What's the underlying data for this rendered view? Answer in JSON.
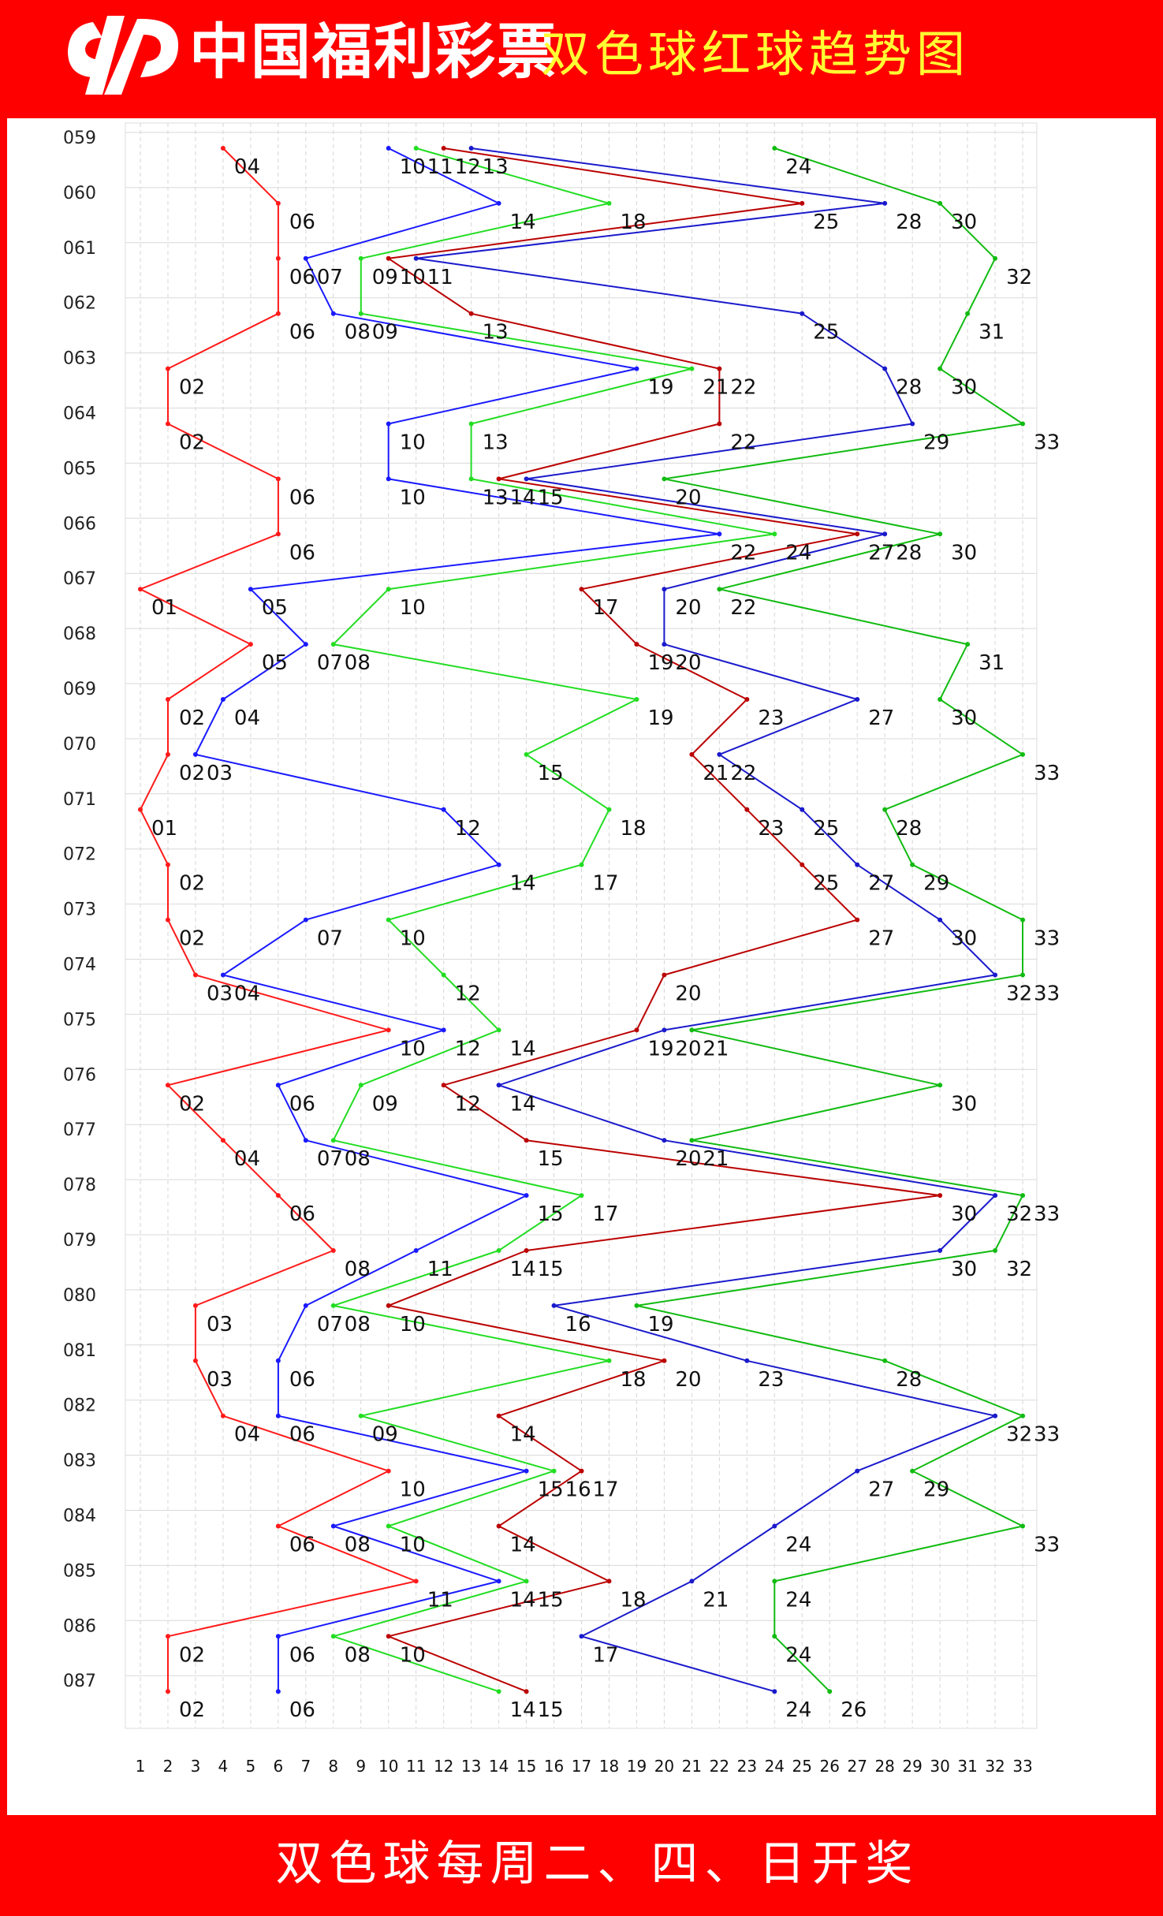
{
  "header": {
    "brand": "中国福利彩票",
    "title": "双色球红球趋势图"
  },
  "footer": {
    "text": "双色球每周二、四、日开奖"
  },
  "colors": {
    "background": "#ff0000",
    "panel": "#ffffff",
    "title_yellow": "#ffff33",
    "line1": "#ff1a1a",
    "line2": "#1a1aff",
    "line3": "#22dd22",
    "line4": "#bb0000",
    "line5": "#1a1acc",
    "line6": "#11bb11"
  },
  "chart_data": {
    "type": "line",
    "title": "双色球红球趋势图",
    "x_ticks": [
      1,
      2,
      3,
      4,
      5,
      6,
      7,
      8,
      9,
      10,
      11,
      12,
      13,
      14,
      15,
      16,
      17,
      18,
      19,
      20,
      21,
      22,
      23,
      24,
      25,
      26,
      27,
      28,
      29,
      30,
      31,
      32,
      33
    ],
    "xlim": [
      1,
      33
    ],
    "grid": true,
    "draws": [
      {
        "issue": "059",
        "numbers": [
          4,
          10,
          11,
          12,
          13,
          24
        ]
      },
      {
        "issue": "060",
        "numbers": [
          6,
          14,
          18,
          25,
          28,
          30
        ]
      },
      {
        "issue": "061",
        "numbers": [
          6,
          7,
          9,
          10,
          11,
          32
        ]
      },
      {
        "issue": "062",
        "numbers": [
          6,
          8,
          9,
          13,
          25,
          31
        ]
      },
      {
        "issue": "063",
        "numbers": [
          2,
          19,
          21,
          22,
          28,
          30
        ]
      },
      {
        "issue": "064",
        "numbers": [
          2,
          10,
          13,
          22,
          29,
          33
        ]
      },
      {
        "issue": "065",
        "numbers": [
          6,
          10,
          13,
          14,
          15,
          20
        ]
      },
      {
        "issue": "066",
        "numbers": [
          6,
          22,
          24,
          27,
          28,
          30
        ]
      },
      {
        "issue": "067",
        "numbers": [
          1,
          5,
          10,
          17,
          20,
          22
        ]
      },
      {
        "issue": "068",
        "numbers": [
          5,
          7,
          8,
          19,
          20,
          31
        ]
      },
      {
        "issue": "069",
        "numbers": [
          2,
          4,
          19,
          23,
          27,
          30
        ]
      },
      {
        "issue": "070",
        "numbers": [
          2,
          3,
          15,
          21,
          22,
          33
        ]
      },
      {
        "issue": "071",
        "numbers": [
          1,
          12,
          18,
          23,
          25,
          28
        ]
      },
      {
        "issue": "072",
        "numbers": [
          2,
          14,
          17,
          25,
          27,
          29
        ]
      },
      {
        "issue": "073",
        "numbers": [
          2,
          7,
          10,
          27,
          30,
          33
        ]
      },
      {
        "issue": "074",
        "numbers": [
          3,
          4,
          12,
          20,
          32,
          33
        ]
      },
      {
        "issue": "075",
        "numbers": [
          10,
          12,
          14,
          19,
          20,
          21
        ]
      },
      {
        "issue": "076",
        "numbers": [
          2,
          6,
          9,
          12,
          14,
          30
        ]
      },
      {
        "issue": "077",
        "numbers": [
          4,
          7,
          8,
          15,
          20,
          21
        ]
      },
      {
        "issue": "078",
        "numbers": [
          6,
          15,
          17,
          30,
          32,
          33
        ]
      },
      {
        "issue": "079",
        "numbers": [
          8,
          11,
          14,
          15,
          30,
          32
        ]
      },
      {
        "issue": "080",
        "numbers": [
          3,
          7,
          8,
          10,
          16,
          19
        ]
      },
      {
        "issue": "081",
        "numbers": [
          3,
          6,
          18,
          20,
          23,
          28
        ]
      },
      {
        "issue": "082",
        "numbers": [
          4,
          6,
          9,
          14,
          32,
          33
        ]
      },
      {
        "issue": "083",
        "numbers": [
          10,
          15,
          16,
          17,
          27,
          29
        ]
      },
      {
        "issue": "084",
        "numbers": [
          6,
          8,
          10,
          14,
          24,
          33
        ]
      },
      {
        "issue": "085",
        "numbers": [
          11,
          14,
          15,
          18,
          21,
          24
        ]
      },
      {
        "issue": "086",
        "numbers": [
          2,
          6,
          8,
          10,
          17,
          24
        ]
      },
      {
        "issue": "087",
        "numbers": [
          2,
          6,
          14,
          15,
          24,
          26
        ]
      }
    ]
  }
}
